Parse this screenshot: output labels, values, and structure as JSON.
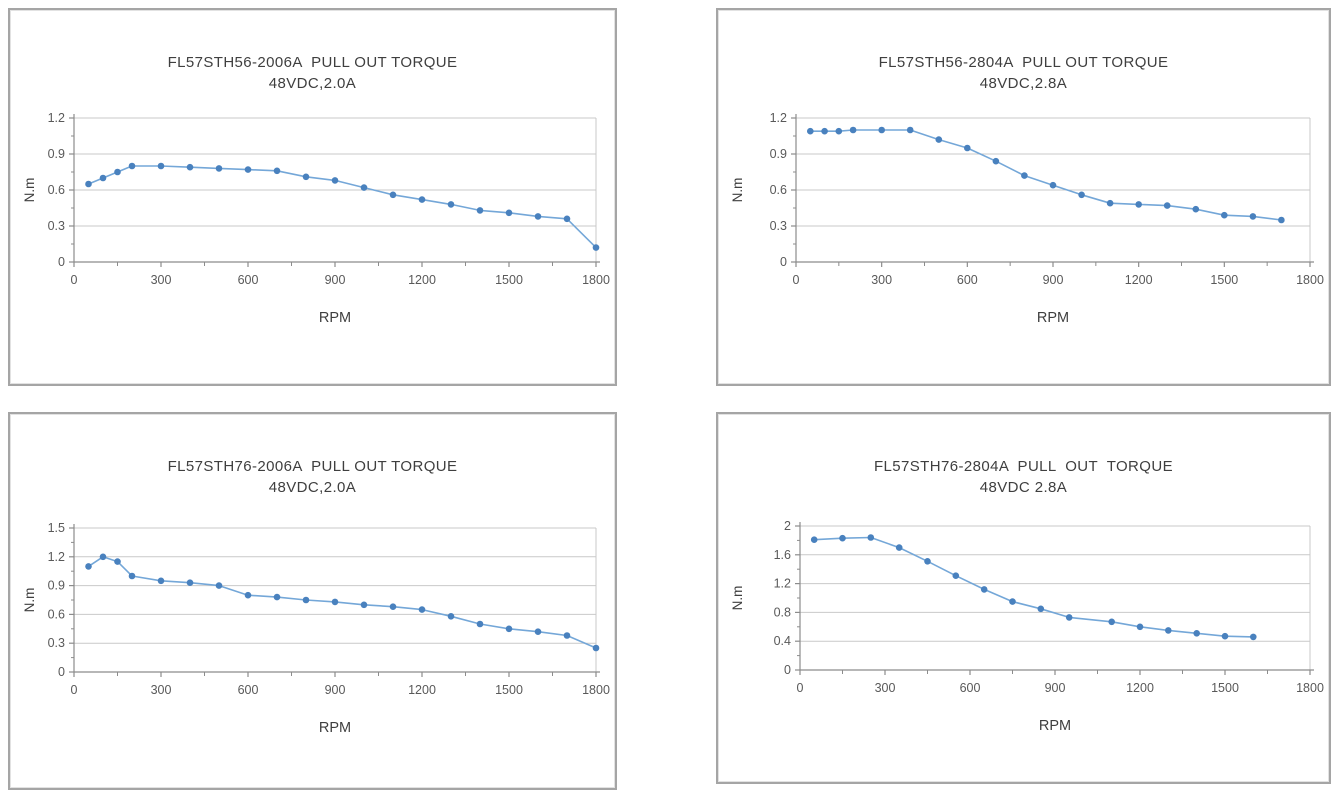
{
  "styles": {
    "line_color": "#74a7d8",
    "marker_color": "#4981be",
    "grid_color": "#c9c9c9",
    "axis_color": "#8c8c8c",
    "title_color": "#3f3f3f",
    "tick_label_color": "#595959",
    "panel_border_color": "#a5a5a5"
  },
  "chart_data": [
    {
      "type": "line",
      "title": "FL57STH56-2006A  PULL OUT TORQUE",
      "subtitle": "48VDC,2.0A",
      "xlabel": "RPM",
      "ylabel": "N.m",
      "xlim": [
        0,
        1800
      ],
      "ylim": [
        0,
        1.2
      ],
      "x_tick_labels": [
        "0",
        "300",
        "600",
        "900",
        "1200",
        "1500",
        "1800"
      ],
      "y_tick_labels": [
        "0",
        "0.3",
        "0.6",
        "0.9",
        "1.2"
      ],
      "grid": true,
      "legend": "none",
      "x": [
        50,
        100,
        150,
        200,
        300,
        400,
        500,
        600,
        700,
        800,
        900,
        1000,
        1100,
        1200,
        1300,
        1400,
        1500,
        1600,
        1700,
        1800
      ],
      "y": [
        0.65,
        0.7,
        0.75,
        0.8,
        0.8,
        0.79,
        0.78,
        0.77,
        0.76,
        0.71,
        0.68,
        0.62,
        0.56,
        0.52,
        0.48,
        0.43,
        0.41,
        0.38,
        0.36,
        0.12
      ]
    },
    {
      "type": "line",
      "title": "FL57STH56-2804A  PULL OUT TORQUE",
      "subtitle": "48VDC,2.8A",
      "xlabel": "RPM",
      "ylabel": "N.m",
      "xlim": [
        0,
        1800
      ],
      "ylim": [
        0,
        1.2
      ],
      "x_tick_labels": [
        "0",
        "300",
        "600",
        "900",
        "1200",
        "1500",
        "1800"
      ],
      "y_tick_labels": [
        "0",
        "0.3",
        "0.6",
        "0.9",
        "1.2"
      ],
      "grid": true,
      "legend": "none",
      "x": [
        50,
        100,
        150,
        200,
        300,
        400,
        500,
        600,
        700,
        800,
        900,
        1000,
        1100,
        1200,
        1300,
        1400,
        1500,
        1600,
        1700
      ],
      "y": [
        1.09,
        1.09,
        1.09,
        1.1,
        1.1,
        1.1,
        1.02,
        0.95,
        0.84,
        0.72,
        0.64,
        0.56,
        0.49,
        0.48,
        0.47,
        0.44,
        0.39,
        0.38,
        0.35
      ]
    },
    {
      "type": "line",
      "title": "FL57STH76-2006A  PULL OUT TORQUE",
      "subtitle": "48VDC,2.0A",
      "xlabel": "RPM",
      "ylabel": "N.m",
      "xlim": [
        0,
        1800
      ],
      "ylim": [
        0,
        1.5
      ],
      "x_tick_labels": [
        "0",
        "300",
        "600",
        "900",
        "1200",
        "1500",
        "1800"
      ],
      "y_tick_labels": [
        "0",
        "0.3",
        "0.6",
        "0.9",
        "1.2",
        "1.5"
      ],
      "grid": true,
      "legend": "none",
      "x": [
        50,
        100,
        150,
        200,
        300,
        400,
        500,
        600,
        700,
        800,
        900,
        1000,
        1100,
        1200,
        1300,
        1400,
        1500,
        1600,
        1700,
        1800
      ],
      "y": [
        1.1,
        1.2,
        1.15,
        1.0,
        0.95,
        0.93,
        0.9,
        0.8,
        0.78,
        0.75,
        0.73,
        0.7,
        0.68,
        0.65,
        0.58,
        0.5,
        0.45,
        0.42,
        0.38,
        0.25
      ]
    },
    {
      "type": "line",
      "title": "FL57STH76-2804A  PULL  OUT  TORQUE",
      "subtitle": "48VDC 2.8A",
      "xlabel": "RPM",
      "ylabel": "N.m",
      "xlim": [
        0,
        1800
      ],
      "ylim": [
        0,
        2
      ],
      "x_tick_labels": [
        "0",
        "300",
        "600",
        "900",
        "1200",
        "1500",
        "1800"
      ],
      "y_tick_labels": [
        "0",
        "0.4",
        "0.8",
        "1.2",
        "1.6",
        "2"
      ],
      "grid": true,
      "legend": "none",
      "x": [
        50,
        150,
        250,
        350,
        450,
        550,
        650,
        750,
        850,
        950,
        1100,
        1200,
        1300,
        1400,
        1500,
        1600
      ],
      "y": [
        1.81,
        1.83,
        1.84,
        1.7,
        1.51,
        1.31,
        1.12,
        0.95,
        0.85,
        0.73,
        0.67,
        0.6,
        0.55,
        0.51,
        0.47,
        0.46
      ]
    }
  ]
}
